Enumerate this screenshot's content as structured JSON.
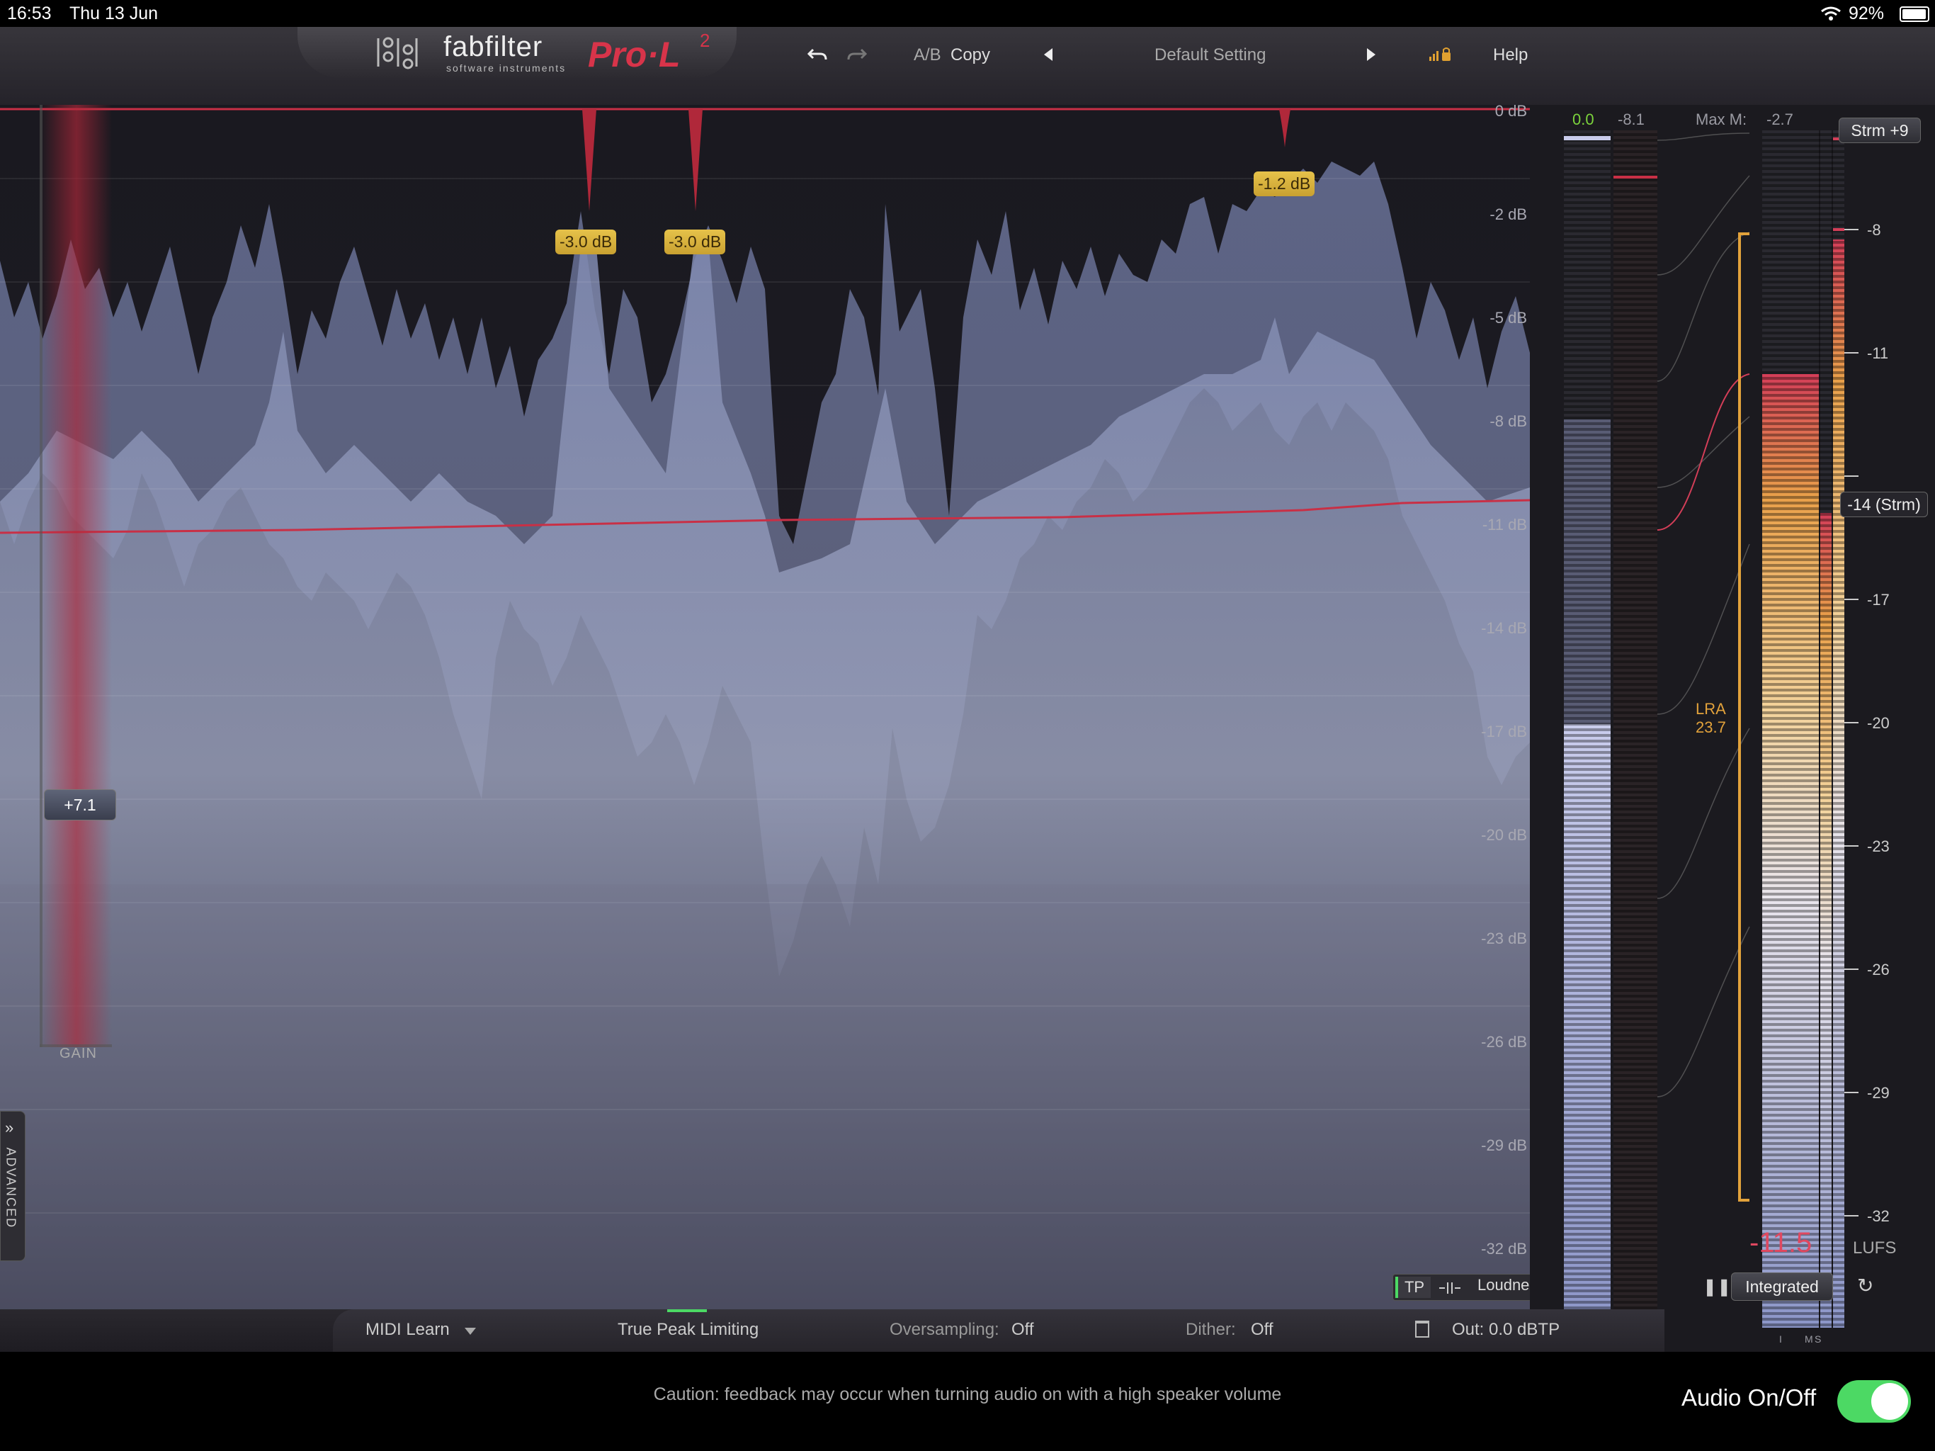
{
  "status": {
    "time": "16:53",
    "date": "Thu 13 Jun",
    "battery": "92%",
    "wifi_icon": "wifi-icon"
  },
  "header": {
    "brand": "fabfilter",
    "brand_sub": "software instruments",
    "product": "Pro·L",
    "product_sup": "2",
    "ab": "A/B",
    "copy": "Copy",
    "preset": "Default Setting",
    "help": "Help"
  },
  "display": {
    "db_labels": [
      "0 dB",
      "-2 dB",
      "-5 dB",
      "-8 dB",
      "-11 dB",
      "-14 dB",
      "-17 dB",
      "-20 dB",
      "-23 dB",
      "-26 dB",
      "-29 dB",
      "-32 dB"
    ],
    "badges": [
      "-3.0 dB",
      "-3.0 dB",
      "-1.2 dB"
    ],
    "gain_value": "+7.1",
    "gain_label": "GAIN",
    "advanced_label": "ADVANCED",
    "tp_btn": "TP",
    "loudness_btn": "Loudness"
  },
  "meters": {
    "in_peak": "0.0",
    "out_peak": "-8.1",
    "max_m_label": "Max M:",
    "max_m_value": "-2.7",
    "target_btn": "Strm +9",
    "target_marker": "-14 (Strm)",
    "scale": [
      "-8",
      "-11",
      "-14",
      "-17",
      "-20",
      "-23",
      "-26",
      "-29",
      "-32"
    ],
    "lra_label": "LRA",
    "lra_value": "23.7",
    "readout": "-11.5",
    "unit": "LUFS",
    "col_i": "I",
    "col_m": "M",
    "col_s": "S",
    "mode_btn": "Integrated"
  },
  "bottom": {
    "midi": "MIDI Learn",
    "tpl": "True Peak Limiting",
    "ovs_label": "Oversampling:",
    "ovs_value": "Off",
    "dither_label": "Dither:",
    "dither_value": "Off",
    "out": "Out: 0.0 dBTP"
  },
  "footer": {
    "caution": "Caution: feedback may occur when turning audio on with a high speaker volume",
    "audio_label": "Audio On/Off"
  },
  "colors": {
    "accent_red": "#d8344a",
    "badge_gold": "#e0b840",
    "wave": "#8e98c4",
    "toggle_on": "#4cd964"
  }
}
